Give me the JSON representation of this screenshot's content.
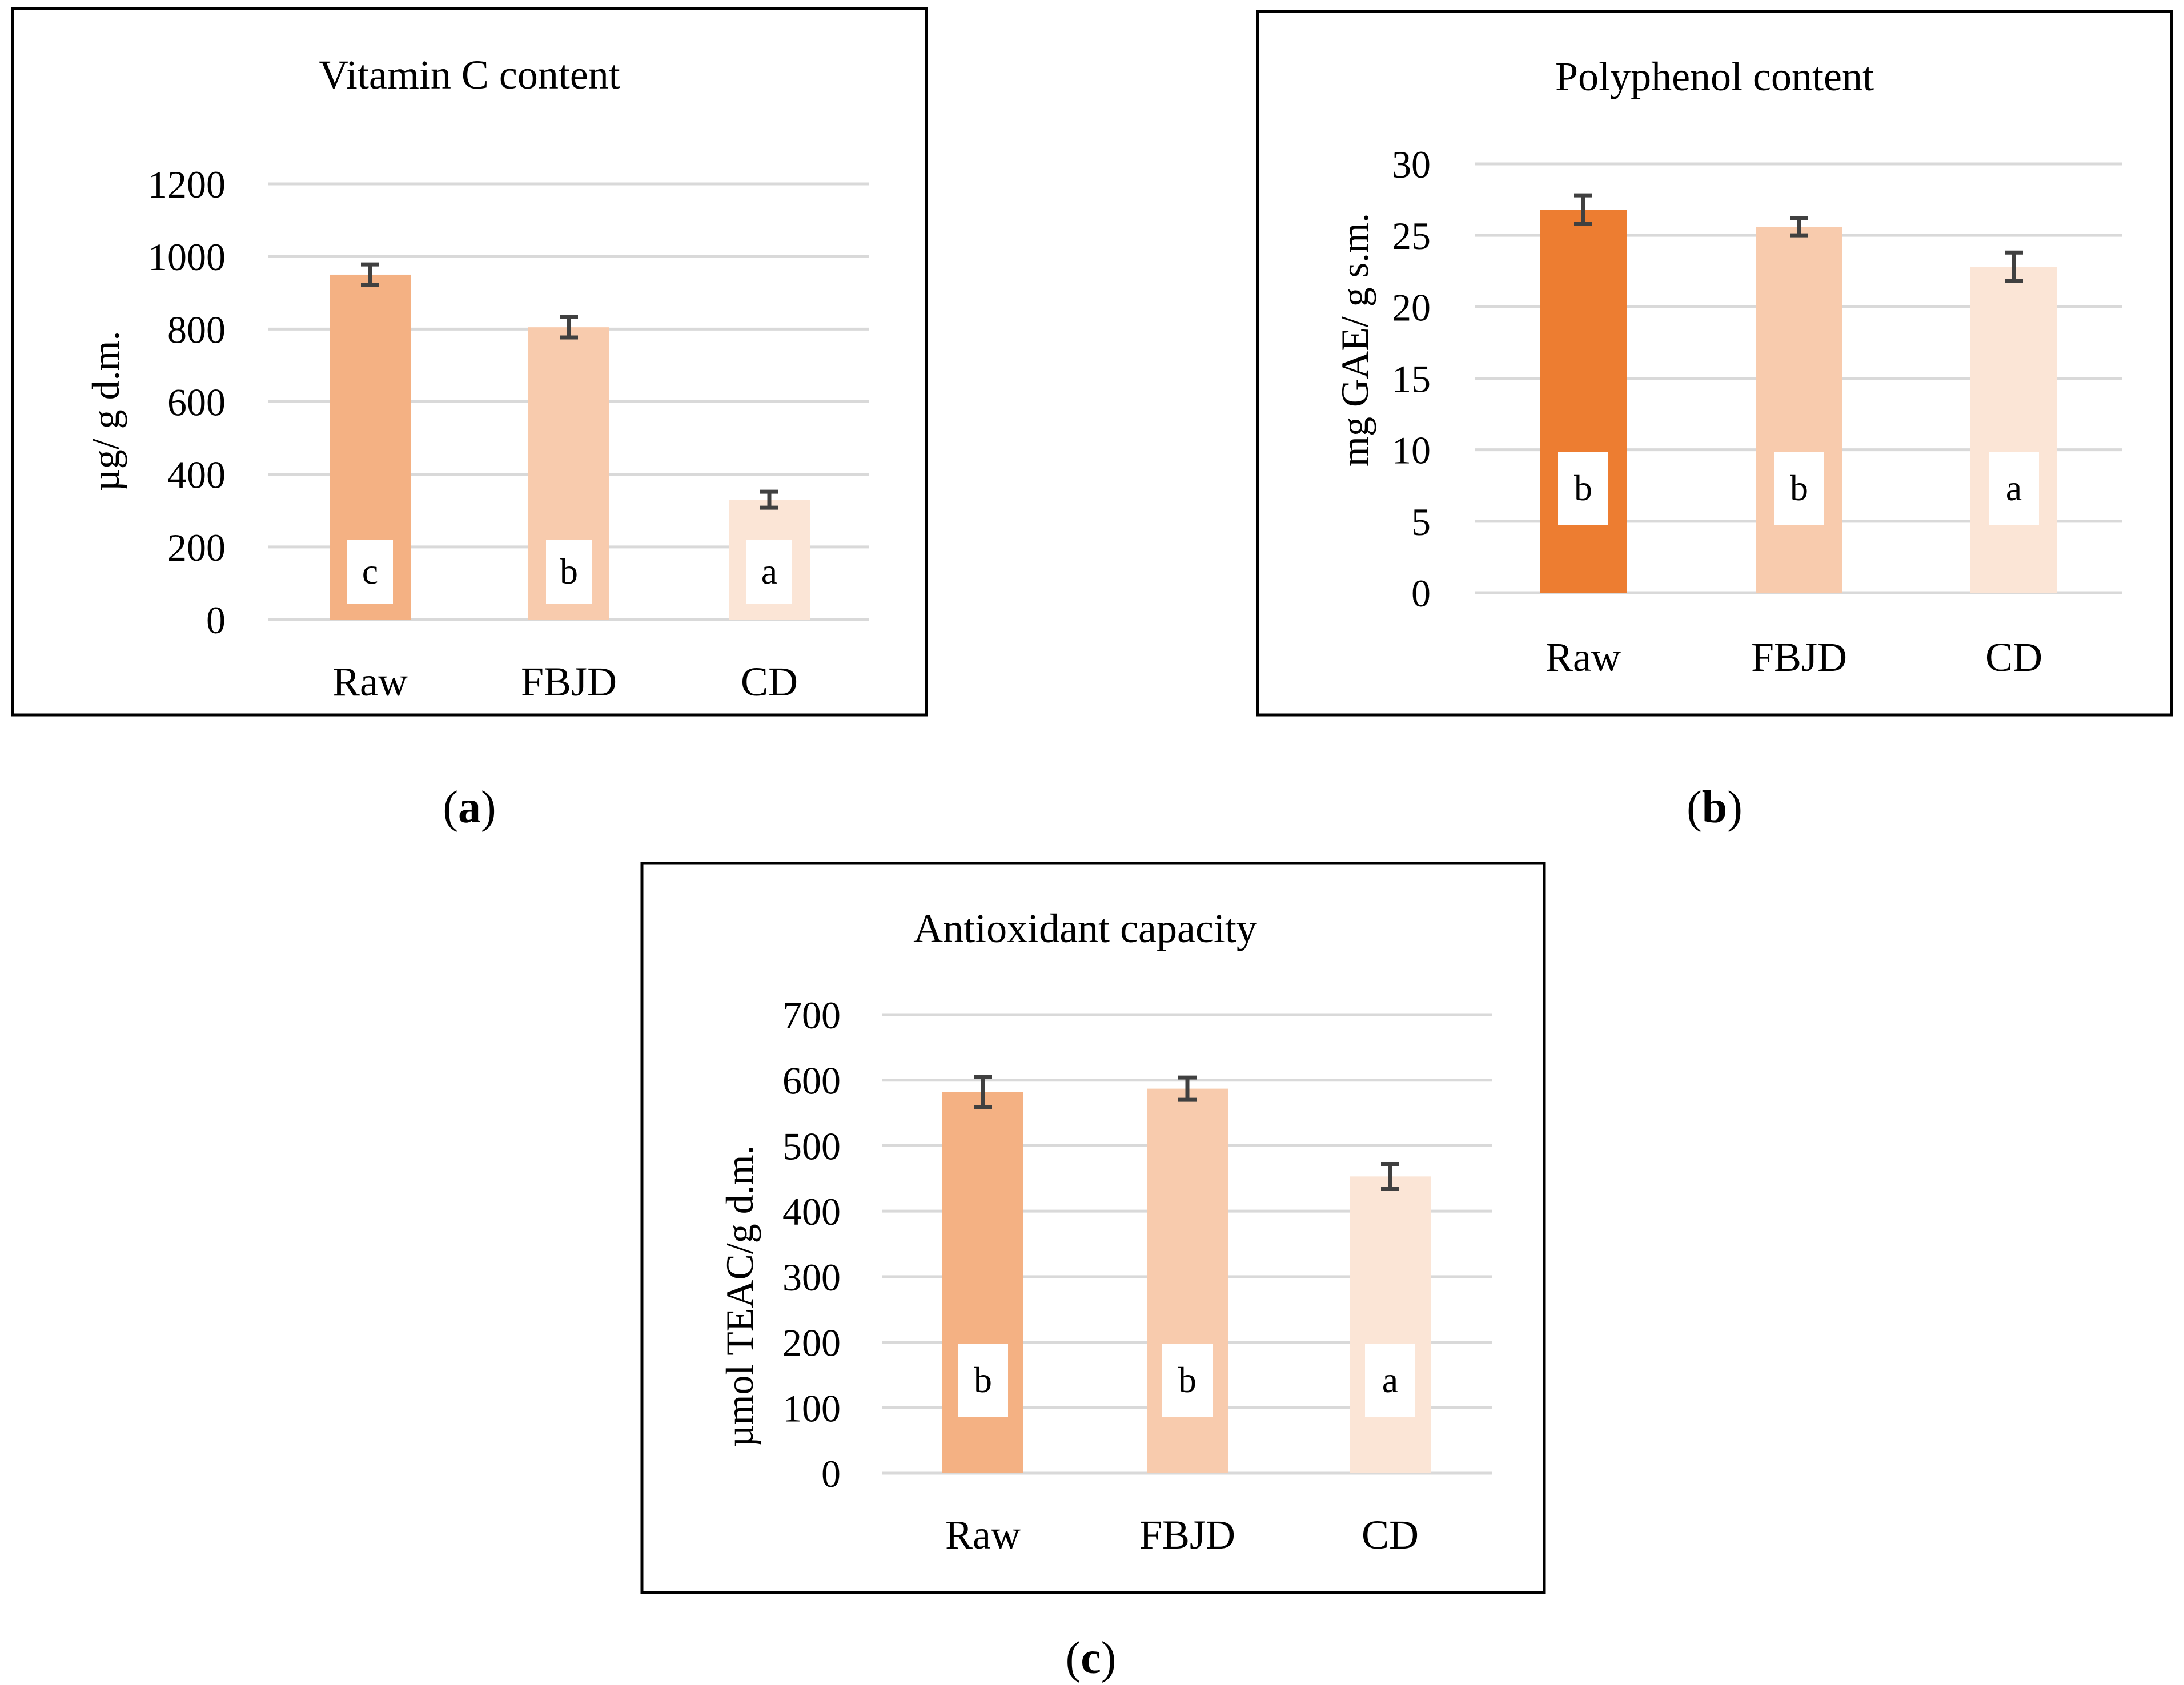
{
  "chart_data": [
    {
      "id": "a",
      "type": "bar",
      "title": "Vitamin C content",
      "ylabel": "µg/ g d.m.",
      "xlabel": "",
      "categories": [
        "Raw",
        "FBJD",
        "CD"
      ],
      "values": [
        950,
        805,
        330
      ],
      "errors": [
        28,
        28,
        22
      ],
      "significance": [
        "c",
        "b",
        "a"
      ],
      "ylim": [
        0,
        1200
      ],
      "yticks": [
        0,
        200,
        400,
        600,
        800,
        1000,
        1200
      ],
      "colors": [
        "#f4b183",
        "#f8cbad",
        "#fbe5d6"
      ],
      "panel_label": "a"
    },
    {
      "id": "b",
      "type": "bar",
      "title": "Polyphenol content",
      "ylabel": "mg GAE/ g s.m.",
      "xlabel": "",
      "categories": [
        "Raw",
        "FBJD",
        "CD"
      ],
      "values": [
        26.8,
        25.6,
        22.8
      ],
      "errors": [
        1.0,
        0.6,
        1.0
      ],
      "significance": [
        "b",
        "b",
        "a"
      ],
      "ylim": [
        0,
        30
      ],
      "yticks": [
        0,
        5,
        10,
        15,
        20,
        25,
        30
      ],
      "colors": [
        "#ed7d31",
        "#f8cbad",
        "#fbe5d6"
      ],
      "panel_label": "b"
    },
    {
      "id": "c",
      "type": "bar",
      "title": "Antioxidant capacity",
      "ylabel": "µmol TEAC/g d.m.",
      "xlabel": "",
      "categories": [
        "Raw",
        "FBJD",
        "CD"
      ],
      "values": [
        582,
        587,
        453
      ],
      "errors": [
        23,
        17,
        19
      ],
      "significance": [
        "b",
        "b",
        "a"
      ],
      "ylim": [
        0,
        700
      ],
      "yticks": [
        0,
        100,
        200,
        300,
        400,
        500,
        600,
        700
      ],
      "colors": [
        "#f4b183",
        "#f8cbad",
        "#fbe5d6"
      ],
      "panel_label": "c"
    }
  ],
  "colors": {
    "grid": "#d9d9d9",
    "frame": "#000000",
    "error_bar": "#404040",
    "background": "#ffffff"
  }
}
